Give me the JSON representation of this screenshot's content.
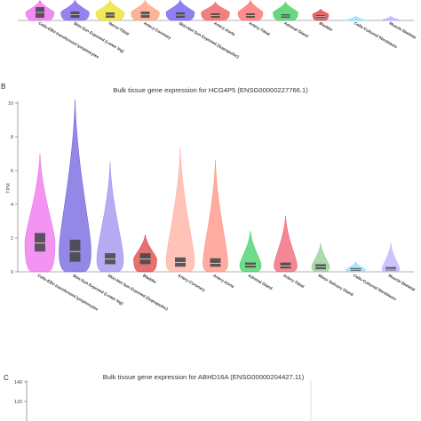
{
  "chart_data": [
    {
      "type": "violin",
      "panel": "",
      "title": "",
      "categories": [
        "Cells-EBV-transformed lymphocytes",
        "Skin-Sun Exposed (Lower leg)",
        "Nerve-Tibial",
        "Artery-Coronary",
        "Skin-Not Sun Exposed (Suprapubic)",
        "Artery-Aorta",
        "Artery-Tibial",
        "Adrenal Gland",
        "Bladder",
        "Cells-Cultured fibroblasts",
        "Muscle-Skeletal"
      ],
      "colors": [
        "#ee66ee",
        "#7755ee",
        "#eedd22",
        "#ff9977",
        "#6655ee",
        "#ee5555",
        "#ff6666",
        "#33cc55",
        "#dd3333",
        "#88ddff",
        "#bbaaff"
      ]
    },
    {
      "type": "violin",
      "panel": "B",
      "title": "Bulk tissue gene expression for HCG4P5 (ENSG00000227766.1)",
      "ylabel": "TPM",
      "ylim": [
        0,
        10
      ],
      "yticks": [
        0,
        2,
        4,
        6,
        8,
        10
      ],
      "categories": [
        "Cells-EBV-transformed lymphocytes",
        "Skin-Sun Exposed (Lower leg)",
        "Skin-Not Sun Exposed (Suprapubic)",
        "Bladder",
        "Artery-Coronary",
        "Artery-Aorta",
        "Adrenal Gland",
        "Artery-Tibial",
        "Minor Salivary Gland",
        "Cells-Cultured fibroblasts",
        "Muscle-Skeletal"
      ],
      "colors": [
        "#ee66ee",
        "#6655dd",
        "#9988ee",
        "#dd3333",
        "#ffaa99",
        "#ff8877",
        "#33cc55",
        "#ee5566",
        "#88cc88",
        "#88ddff",
        "#bbaaff"
      ],
      "max": [
        7.0,
        10.2,
        6.5,
        2.2,
        7.3,
        6.6,
        2.4,
        3.3,
        1.7,
        0.6,
        1.7
      ],
      "q1": [
        1.2,
        0.6,
        0.45,
        0.45,
        0.3,
        0.3,
        0.25,
        0.2,
        0.15,
        0.05,
        0.08
      ],
      "median": [
        1.7,
        1.2,
        0.75,
        0.75,
        0.55,
        0.5,
        0.4,
        0.35,
        0.3,
        0.12,
        0.15
      ],
      "q3": [
        2.3,
        1.9,
        1.1,
        1.1,
        0.85,
        0.8,
        0.55,
        0.55,
        0.45,
        0.22,
        0.28
      ]
    },
    {
      "type": "violin",
      "panel": "C",
      "title": "Bulk tissue gene expression for ABHD16A (ENSG00000204427.11)",
      "ylim": [
        100,
        140
      ],
      "yticks": [
        120,
        140
      ]
    }
  ]
}
